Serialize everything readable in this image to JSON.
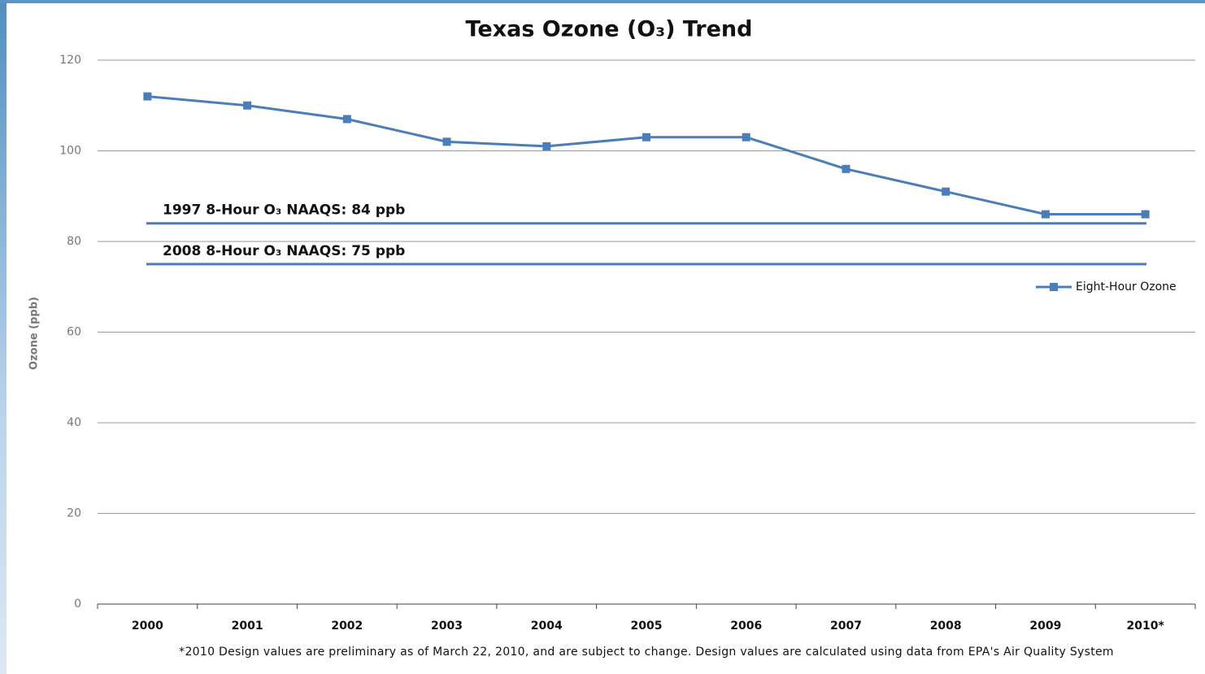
{
  "chart_data": {
    "type": "line",
    "title": "Texas Ozone (O₃) Trend",
    "y_label": "Ozone (ppb)",
    "categories": [
      "2000",
      "2001",
      "2002",
      "2003",
      "2004",
      "2005",
      "2006",
      "2007",
      "2008",
      "2009",
      "2010*"
    ],
    "series": [
      {
        "name": "Eight-Hour Ozone",
        "color": "#4a7ebb",
        "values": [
          112,
          110,
          107,
          102,
          101,
          103,
          103,
          96,
          91,
          86,
          86
        ]
      }
    ],
    "reference_lines": [
      {
        "label": "1997 8-Hour O₃ NAAQS: 84 ppb",
        "value": 84
      },
      {
        "label": "2008 8-Hour O₃ NAAQS: 75 ppb",
        "value": 75
      }
    ],
    "ylim": [
      0,
      120
    ],
    "yticks": [
      0,
      20,
      40,
      60,
      80,
      100,
      120
    ],
    "grid": true,
    "legend": "right",
    "footnote": "*2010 Design values are preliminary as of March 22, 2010, and are subject to change. Design values are calculated using data from EPA's Air Quality System"
  }
}
